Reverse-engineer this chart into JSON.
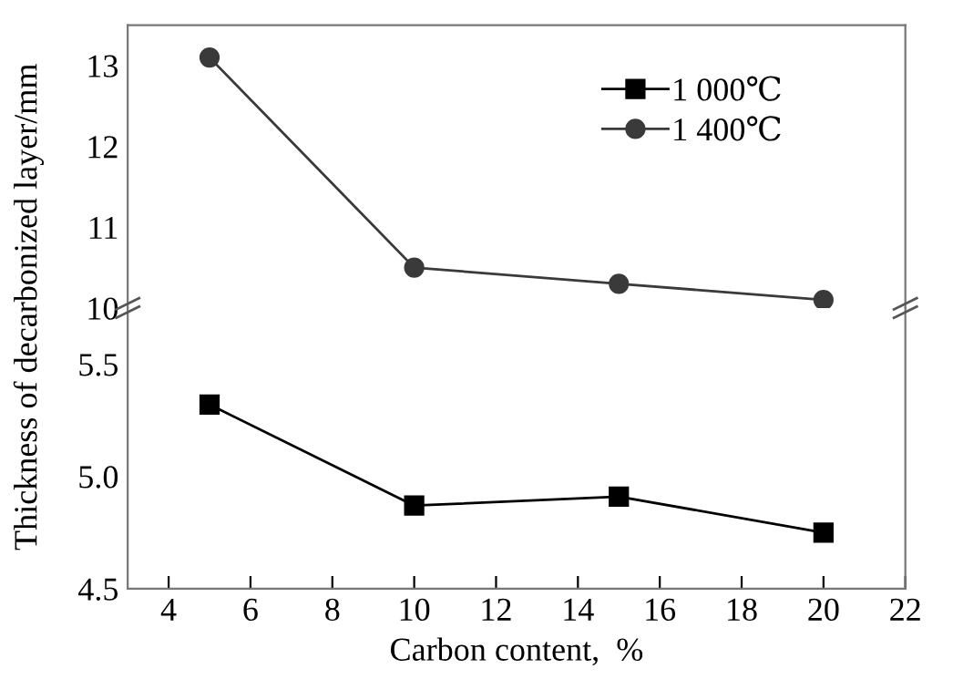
{
  "chart_data": [
    {
      "type": "line",
      "ylabel": "Thickness of decarbonized layer/mm",
      "x": [
        5,
        10,
        15,
        20
      ],
      "xlim": [
        3,
        22
      ],
      "xticks": [
        4,
        6,
        8,
        10,
        12,
        14,
        16,
        18,
        20,
        22
      ],
      "ylim": [
        10,
        13.5
      ],
      "yticks": [
        10,
        11,
        12,
        13
      ],
      "tick_labels": "y",
      "legend": "top right",
      "grid": false,
      "series": [
        {
          "name": "1 400℃",
          "color": "#3a3a3a",
          "marker": "circle",
          "values": [
            13.1,
            10.5,
            10.3,
            10.1
          ]
        }
      ]
    },
    {
      "type": "line",
      "xlabel": "Carbon content,  %",
      "x": [
        5,
        10,
        15,
        20
      ],
      "xlim": [
        3,
        22
      ],
      "xticks": [
        4,
        6,
        8,
        10,
        12,
        14,
        16,
        18,
        20,
        22
      ],
      "ylim": [
        4.5,
        5.75
      ],
      "yticks": [
        {
          "value": 4.5,
          "label": "4.5"
        },
        {
          "value": 5.0,
          "label": "5.0"
        },
        {
          "value": 5.5,
          "label": "5.5"
        }
      ],
      "grid": false,
      "series": [
        {
          "name": "1 000℃",
          "color": "#000000",
          "marker": "square",
          "values": [
            5.32,
            4.87,
            4.91,
            4.75
          ]
        }
      ]
    }
  ]
}
